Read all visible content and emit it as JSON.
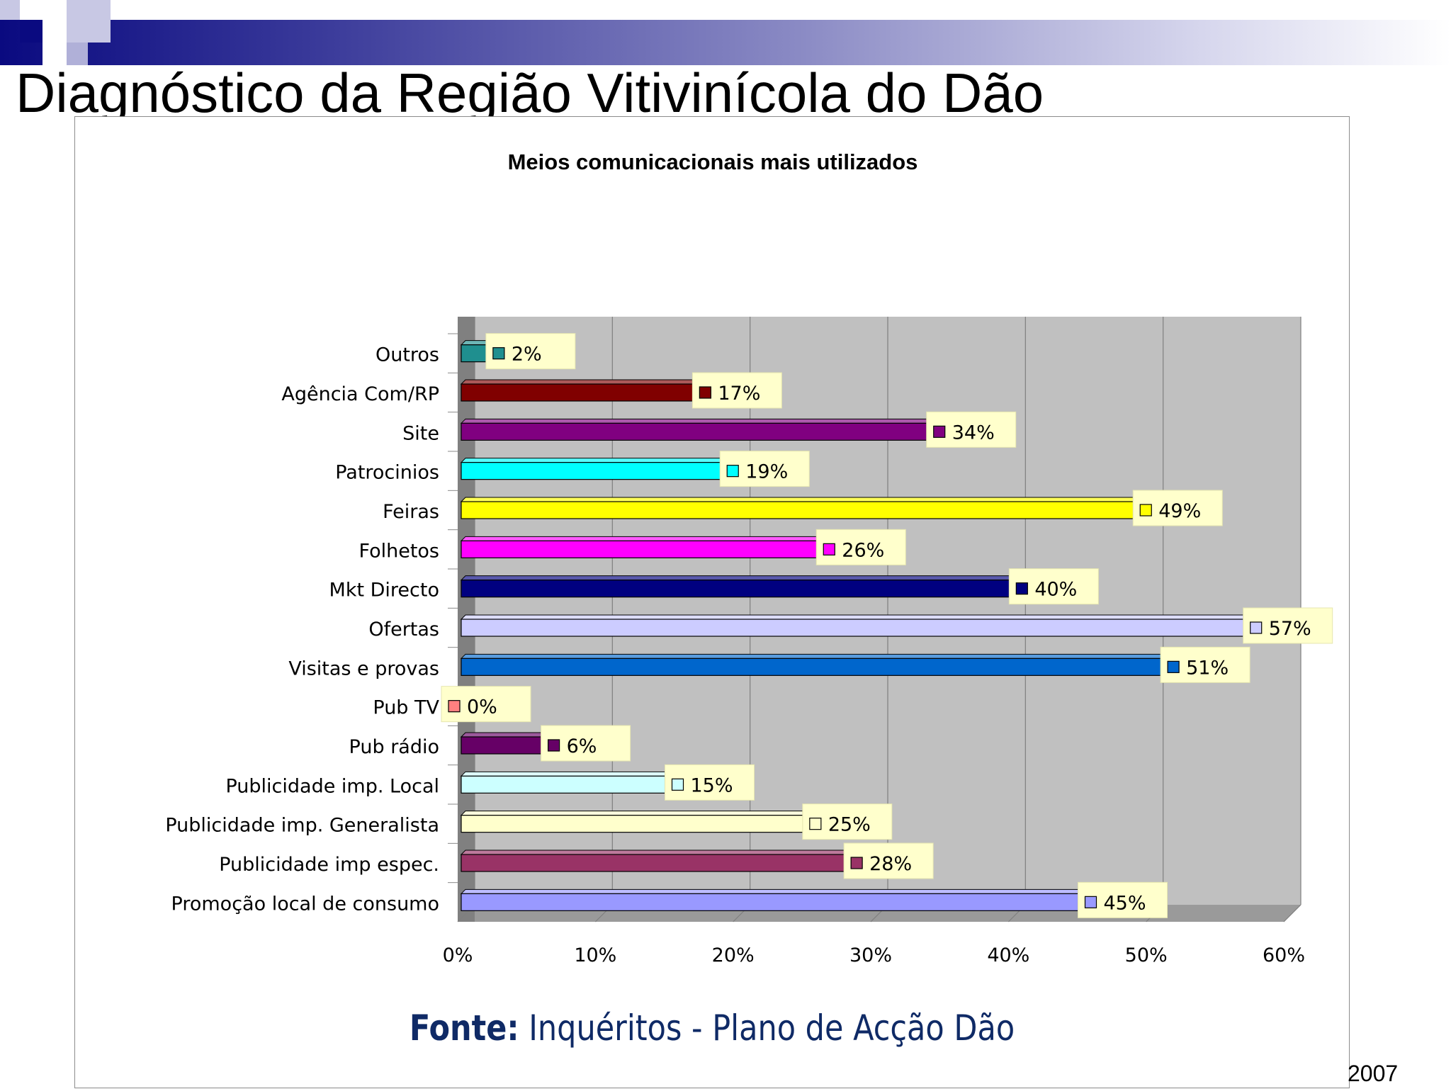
{
  "slide": {
    "title": "Diagnóstico da Região Vitivinícola do Dão",
    "source_label": "Fonte:",
    "source_text": "Inquéritos - Plano de Acção Dão",
    "year": "2007"
  },
  "chart_data": {
    "type": "bar",
    "orientation": "horizontal",
    "style": "3d",
    "title": "Meios comunicacionais mais utilizados",
    "xlabel": "",
    "ylabel": "",
    "xlim": [
      0,
      0.6
    ],
    "x_ticks": [
      "0%",
      "10%",
      "20%",
      "30%",
      "40%",
      "50%",
      "60%"
    ],
    "grid": true,
    "legend": "none",
    "categories": [
      "Outros",
      "Agência Com/RP",
      "Site",
      "Patrocinios",
      "Feiras",
      "Folhetos",
      "Mkt Directo",
      "Ofertas",
      "Visitas e provas",
      "Pub TV",
      "Pub rádio",
      "Publicidade imp. Local",
      "Publicidade imp. Generalista",
      "Publicidade imp espec.",
      "Promoção local de consumo"
    ],
    "values": [
      0.02,
      0.17,
      0.34,
      0.19,
      0.49,
      0.26,
      0.4,
      0.57,
      0.51,
      0.0,
      0.06,
      0.15,
      0.25,
      0.28,
      0.45
    ],
    "data_labels": [
      "2%",
      "17%",
      "34%",
      "19%",
      "49%",
      "26%",
      "40%",
      "57%",
      "51%",
      "0%",
      "6%",
      "15%",
      "25%",
      "28%",
      "45%"
    ],
    "colors": [
      "#1f8f8f",
      "#800000",
      "#800080",
      "#00ffff",
      "#ffff00",
      "#ff00ff",
      "#000080",
      "#ccccff",
      "#0066cc",
      "#ff8080",
      "#660066",
      "#ccffff",
      "#ffffcc",
      "#993366",
      "#9999ff"
    ]
  }
}
